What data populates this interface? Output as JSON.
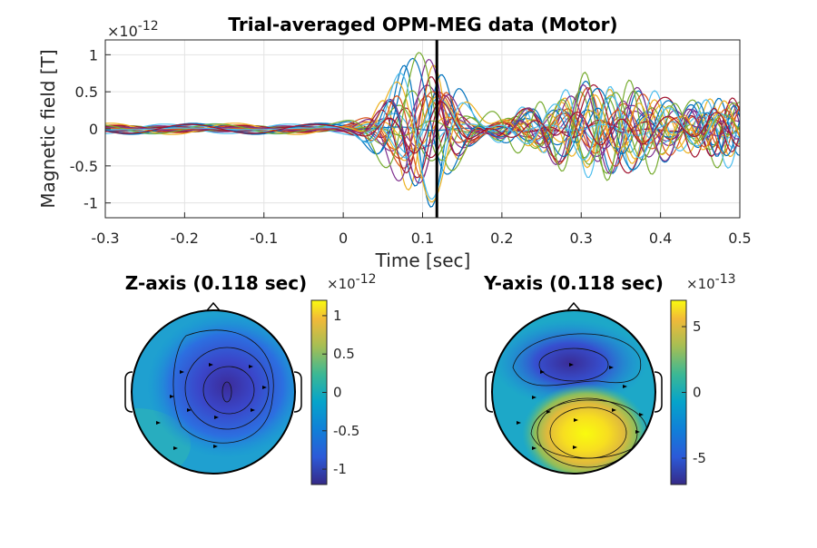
{
  "chart_data": [
    {
      "type": "line",
      "title": "Trial-averaged OPM-MEG data (Motor)",
      "xlabel": "Time [sec]",
      "ylabel": "Magnetic field [T]",
      "y_exponent_base": "×10",
      "y_exponent": "-12",
      "xlim": [
        -0.3,
        0.5
      ],
      "ylim": [
        -1.2,
        1.2
      ],
      "x_ticks": [
        "-0.3",
        "-0.2",
        "-0.1",
        "0",
        "0.1",
        "0.2",
        "0.3",
        "0.4",
        "0.5"
      ],
      "y_ticks": [
        "-1",
        "-0.5",
        "0",
        "0.5",
        "1"
      ],
      "grid": true,
      "cursor_time": 0.118,
      "series_count": 28,
      "series_colors": [
        "#0072BD",
        "#D95319",
        "#EDB120",
        "#7E2F8E",
        "#77AC30",
        "#4DBEEE",
        "#A2142F"
      ]
    },
    {
      "type": "heatmap",
      "title": "Z-axis (0.118 sec)",
      "colorbar": {
        "exponent_base": "×10",
        "exponent": "-12",
        "range": [
          -1.2,
          1.2
        ],
        "ticks": [
          "1",
          "0.5",
          "0",
          "-0.5",
          "-1"
        ]
      },
      "colormap": "parula",
      "peak_sign": "negative"
    },
    {
      "type": "heatmap",
      "title": "Y-axis (0.118 sec)",
      "colorbar": {
        "exponent_base": "×10",
        "exponent": "-13",
        "range": [
          -7,
          7
        ],
        "ticks": [
          "5",
          "0",
          "-5"
        ]
      },
      "colormap": "parula",
      "peak_sign": "dipole"
    }
  ]
}
